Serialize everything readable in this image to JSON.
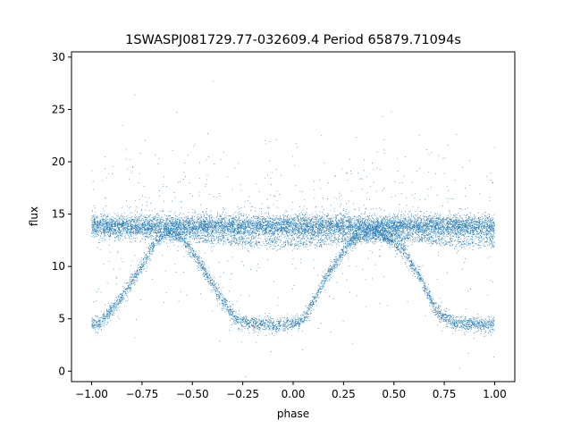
{
  "chart_data": {
    "type": "scatter",
    "title": "1SWASPJ081729.77-032609.4 Period 65879.71094s",
    "xlabel": "phase",
    "ylabel": "flux",
    "xlim": [
      -1.1,
      1.1
    ],
    "ylim": [
      -1.0,
      30.5
    ],
    "xticks": [
      -1.0,
      -0.75,
      -0.5,
      -0.25,
      0.0,
      0.25,
      0.5,
      0.75,
      1.0
    ],
    "xtick_labels": [
      "−1.00",
      "−0.75",
      "−0.50",
      "−0.25",
      "0.00",
      "0.25",
      "0.50",
      "0.75",
      "1.00"
    ],
    "yticks": [
      0,
      5,
      10,
      15,
      20,
      25,
      30
    ],
    "ytick_labels": [
      "0",
      "5",
      "10",
      "15",
      "20",
      "25",
      "30"
    ],
    "grid": false,
    "marker_color": "#1f77b4",
    "series": [
      {
        "description_points": "upper band (constant flux)",
        "x": [
          -1.0,
          -0.75,
          -0.5,
          -0.25,
          0.0,
          0.25,
          0.5,
          0.75,
          1.0
        ],
        "y": [
          13.8,
          13.8,
          13.8,
          13.8,
          13.8,
          13.8,
          13.8,
          13.8,
          13.8
        ]
      },
      {
        "description_points": "lower eclipsing track",
        "x": [
          -1.0,
          -0.96,
          -0.87,
          -0.75,
          -0.68,
          -0.62,
          -0.55,
          -0.45,
          -0.36,
          -0.28,
          -0.2,
          -0.05,
          0.03,
          0.07,
          0.15,
          0.25,
          0.32,
          0.38,
          0.45,
          0.55,
          0.64,
          0.72,
          0.8,
          0.95,
          1.0
        ],
        "y": [
          4.5,
          4.6,
          6.5,
          10.0,
          12.5,
          13.3,
          12.7,
          10.0,
          7.0,
          4.8,
          4.5,
          4.4,
          4.6,
          5.5,
          8.5,
          11.5,
          13.0,
          13.3,
          13.0,
          11.5,
          8.5,
          5.5,
          4.6,
          4.4,
          4.5
        ]
      },
      {
        "description_points": "secondary faint track",
        "x": [
          -0.5,
          -0.35,
          -0.25,
          -0.1,
          0.0,
          0.5,
          0.65,
          0.75,
          0.9,
          1.0
        ],
        "y": [
          12.8,
          12.5,
          12.3,
          12.2,
          12.2,
          12.8,
          12.5,
          12.3,
          12.2,
          12.2
        ]
      }
    ]
  }
}
